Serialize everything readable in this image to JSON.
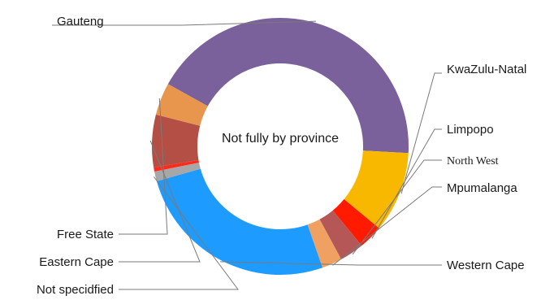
{
  "chart_data": {
    "type": "pie",
    "variant": "donut",
    "center_label": "Not fully by province",
    "slices": [
      {
        "label": "Gauteng",
        "value": 42.0,
        "color": "#7b619b"
      },
      {
        "label": "KwaZulu-Natal",
        "value": 10.0,
        "color": "#f9b800"
      },
      {
        "label": "Limpopo",
        "value": 3.0,
        "color": "#ff1a00"
      },
      {
        "label": "North West",
        "value": 3.0,
        "color": "#b55757"
      },
      {
        "label": "Mpumalanga",
        "value": 2.5,
        "color": "#f0a060"
      },
      {
        "label": "Western Cape",
        "value": 25.5,
        "color": "#1e9bff"
      },
      {
        "label": "Not specidfied",
        "value": 1.2,
        "color": "#a7a7a7"
      },
      {
        "label": "",
        "value": 0.5,
        "color": "#ff2a1a"
      },
      {
        "label": "Eastern Cape",
        "value": 6.5,
        "color": "#b34f44"
      },
      {
        "label": "Free State",
        "value": 4.0,
        "color": "#e8964e"
      }
    ],
    "legend": "none"
  }
}
